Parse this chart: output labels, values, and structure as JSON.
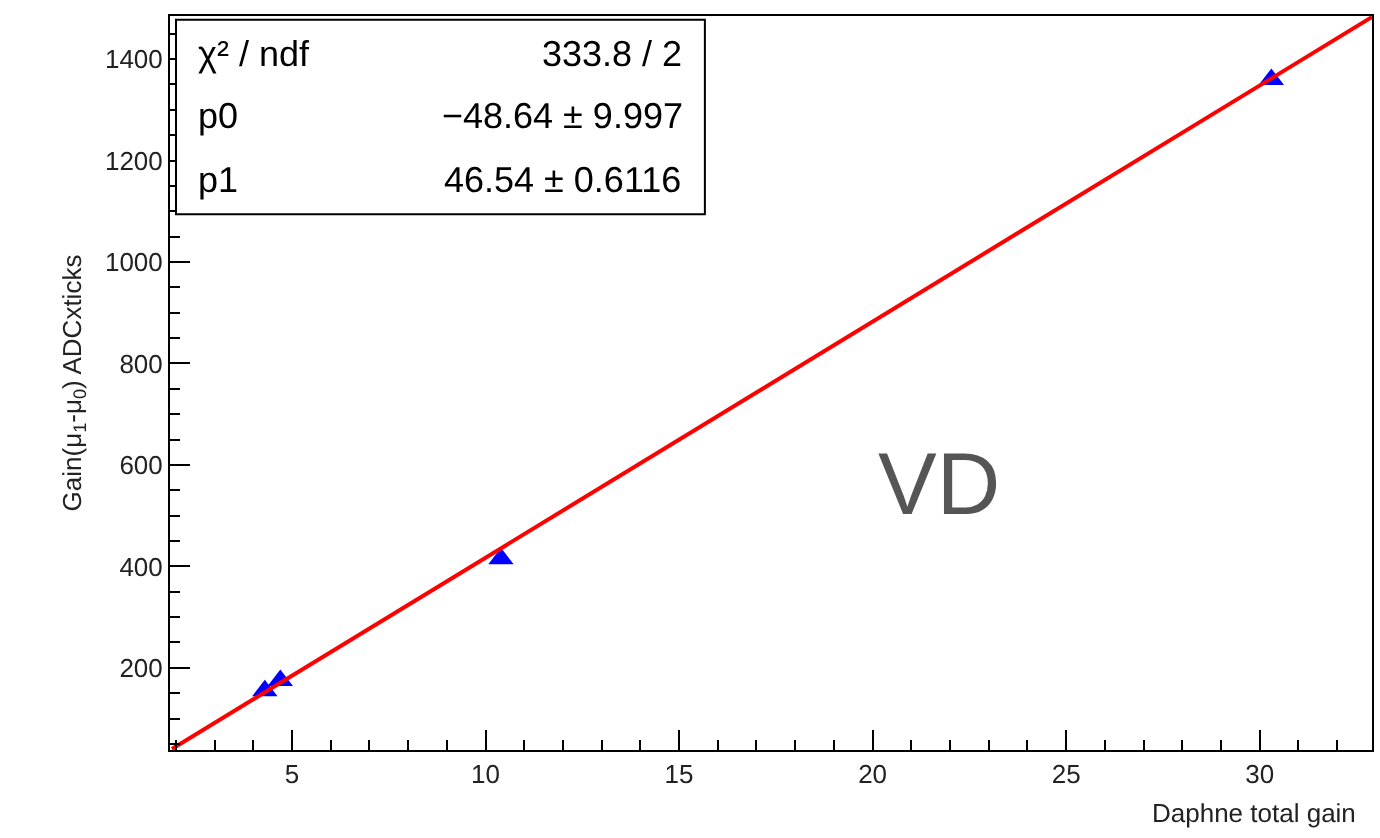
{
  "chart_data": {
    "type": "scatter",
    "xlabel": "Daphne total gain",
    "ylabel": "Gain(μ$_{1}$-μ$_{0}$) ADCxticks",
    "xlim": [
      1.85,
      32.9
    ],
    "xticks": [
      5,
      10,
      15,
      20,
      25,
      30
    ],
    "ylim": [
      38,
      1485
    ],
    "yticks": [
      200,
      400,
      600,
      800,
      1000,
      1200,
      1400
    ],
    "series": [
      {
        "color": "#0000ff",
        "marker": "triangle",
        "x": [
          4.3,
          4.7,
          10.4,
          30.3
        ],
        "values": [
          155,
          175,
          415,
          1360
        ]
      },
      {
        "type": "line",
        "color": "#ff0000",
        "marker": "none",
        "line_style": "solid",
        "x": [
          1.9,
          32.9
        ],
        "values": [
          40,
          1483
        ]
      }
    ],
    "annotations": [
      "χ² / ndf",
      "333.8 / 2",
      "p0",
      "−48.64 ± 9.997",
      "p1",
      "46.54 ± 0.6116",
      "VD"
    ]
  }
}
